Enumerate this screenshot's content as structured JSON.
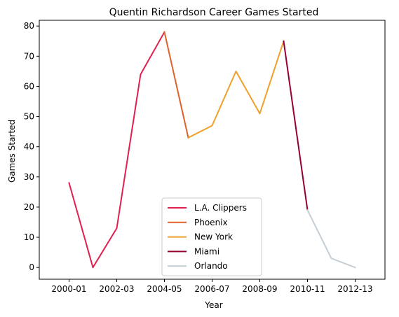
{
  "chart_data": {
    "type": "line",
    "title": "Quentin Richardson Career Games Started",
    "xlabel": "Year",
    "ylabel": "Games Started",
    "ylim": [
      -3.9,
      81.9
    ],
    "yticks": [
      0,
      10,
      20,
      30,
      40,
      50,
      60,
      70,
      80
    ],
    "xticks": [
      "2000-01",
      "2002-03",
      "2004-05",
      "2006-07",
      "2008-09",
      "2010-11",
      "2012-13"
    ],
    "seasons": [
      "2000-01",
      "2001-02",
      "2002-03",
      "2003-04",
      "2004-05",
      "2005-06",
      "2006-07",
      "2007-08",
      "2008-09",
      "2009-10",
      "2010-11",
      "2011-12",
      "2012-13"
    ],
    "grid": false,
    "legend_position": "lower center",
    "series": [
      {
        "name": "L.A. Clippers",
        "color": "#e0204f",
        "points": [
          [
            "2000-01",
            28
          ],
          [
            "2001-02",
            0
          ],
          [
            "2002-03",
            13
          ],
          [
            "2003-04",
            64
          ],
          [
            "2004-05",
            78
          ]
        ]
      },
      {
        "name": "Phoenix",
        "color": "#e0602a",
        "points": [
          [
            "2004-05",
            78
          ],
          [
            "2005-06",
            43
          ]
        ]
      },
      {
        "name": "New York",
        "color": "#f0a028",
        "points": [
          [
            "2005-06",
            43
          ],
          [
            "2006-07",
            47
          ],
          [
            "2007-08",
            65
          ],
          [
            "2008-09",
            51
          ],
          [
            "2009-10",
            75
          ]
        ]
      },
      {
        "name": "Miami",
        "color": "#98002e",
        "points": [
          [
            "2009-10",
            75
          ],
          [
            "2010-11",
            19
          ]
        ]
      },
      {
        "name": "Orlando",
        "color": "#c4ced4",
        "points": [
          [
            "2010-11",
            19
          ],
          [
            "2011-12",
            3
          ],
          [
            "2012-13",
            0
          ]
        ]
      }
    ]
  }
}
